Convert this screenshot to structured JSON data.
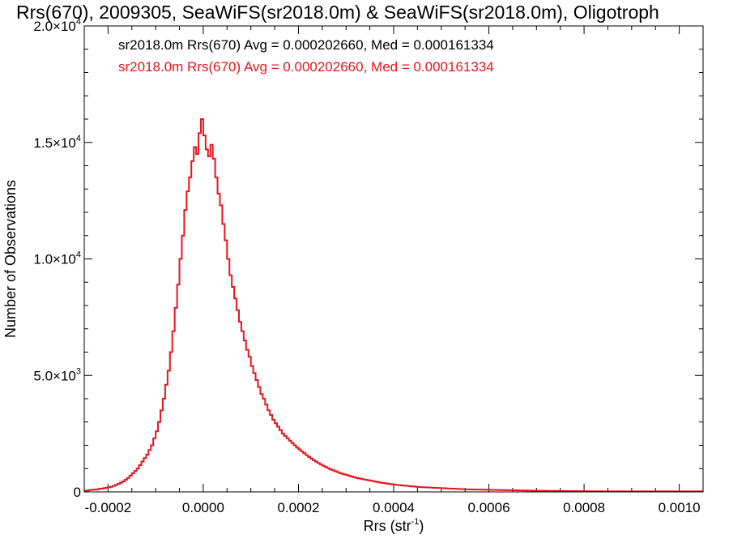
{
  "chart_data": {
    "type": "histogram",
    "title": "Rrs(670), 2009305, SeaWiFS(sr2018.0m) & SeaWiFS(sr2018.0m), Oligotroph",
    "xlabel": "Rrs (str",
    "xlabel_sup": "-1",
    "xlabel_suffix": ")",
    "ylabel": "Number of Observations",
    "xlim": [
      -0.00025,
      0.00105
    ],
    "ylim": [
      0,
      20000
    ],
    "grid": false,
    "x_ticks": [
      {
        "value": -0.0002,
        "label": "-0.0002"
      },
      {
        "value": 0.0,
        "label": "0.0000"
      },
      {
        "value": 0.0002,
        "label": "0.0002"
      },
      {
        "value": 0.0004,
        "label": "0.0004"
      },
      {
        "value": 0.0006,
        "label": "0.0006"
      },
      {
        "value": 0.0008,
        "label": "0.0008"
      },
      {
        "value": 0.001,
        "label": "0.0010"
      }
    ],
    "y_ticks": [
      {
        "value": 0,
        "mant": "0",
        "exp": ""
      },
      {
        "value": 5000,
        "mant": "5.0×10",
        "exp": "3"
      },
      {
        "value": 10000,
        "mant": "1.0×10",
        "exp": "4"
      },
      {
        "value": 15000,
        "mant": "1.5×10",
        "exp": "4"
      },
      {
        "value": 20000,
        "mant": "2.0×10",
        "exp": "4"
      }
    ],
    "legend": [
      {
        "text": "sr2018.0m Rrs(670) Avg = 0.000202660, Med = 0.000161334",
        "color": "#000000"
      },
      {
        "text": "sr2018.0m Rrs(670) Avg = 0.000202660, Med = 0.000161334",
        "color": "#e8141c"
      }
    ],
    "series": [
      {
        "color": "#e8141c",
        "bin_width": 5e-06,
        "x_start": -0.00025,
        "values": [
          50,
          60,
          80,
          90,
          100,
          110,
          130,
          140,
          160,
          180,
          200,
          220,
          260,
          300,
          350,
          400,
          450,
          520,
          600,
          700,
          800,
          900,
          1000,
          1150,
          1300,
          1450,
          1600,
          1800,
          2000,
          2300,
          2600,
          3000,
          3500,
          4000,
          4600,
          5200,
          6000,
          6900,
          7900,
          8900,
          10000,
          11000,
          12100,
          12900,
          13500,
          14200,
          14800,
          14500,
          15400,
          16000,
          15300,
          14700,
          14400,
          14900,
          14300,
          13500,
          12800,
          12300,
          11500,
          10800,
          10000,
          9300,
          8800,
          8300,
          7800,
          7300,
          6900,
          6500,
          6100,
          5800,
          5400,
          5100,
          4800,
          4500,
          4200,
          4000,
          3750,
          3500,
          3300,
          3100,
          2950,
          2800,
          2650,
          2500,
          2400,
          2300,
          2200,
          2100,
          2000,
          1900,
          1820,
          1740,
          1660,
          1580,
          1500,
          1430,
          1360,
          1300,
          1240,
          1180,
          1120,
          1070,
          1020,
          970,
          930,
          890,
          850,
          810,
          780,
          750,
          720,
          690,
          660,
          630,
          600,
          580,
          560,
          540,
          520,
          500,
          480,
          460,
          440,
          420,
          400,
          385,
          370,
          355,
          340,
          325,
          310,
          300,
          290,
          280,
          270,
          260,
          250,
          240,
          230,
          220,
          210,
          205,
          200,
          195,
          190,
          185,
          180,
          175,
          170,
          165,
          160,
          155,
          150,
          145,
          140,
          135,
          130,
          125,
          120,
          115,
          110,
          108,
          106,
          104,
          102,
          100,
          98,
          96,
          94,
          92,
          90,
          88,
          86,
          84,
          82,
          80,
          78,
          76,
          74,
          72,
          70,
          68,
          66,
          64,
          62,
          60,
          58,
          56,
          54,
          52,
          50,
          49,
          48,
          47,
          46,
          45,
          44,
          43,
          42,
          41,
          40,
          39,
          38,
          37,
          36,
          35,
          34,
          33,
          32,
          31,
          30,
          29,
          28,
          27,
          26,
          25,
          24,
          23,
          22,
          21,
          20,
          20,
          20,
          20,
          20,
          20,
          20,
          20,
          20,
          20,
          20,
          20,
          20,
          20,
          20,
          20,
          20,
          20,
          20,
          20,
          20,
          20,
          20,
          20,
          20,
          20,
          20,
          20,
          20,
          20,
          20,
          20,
          20,
          20,
          20,
          20,
          20,
          20,
          20,
          20
        ]
      }
    ]
  }
}
